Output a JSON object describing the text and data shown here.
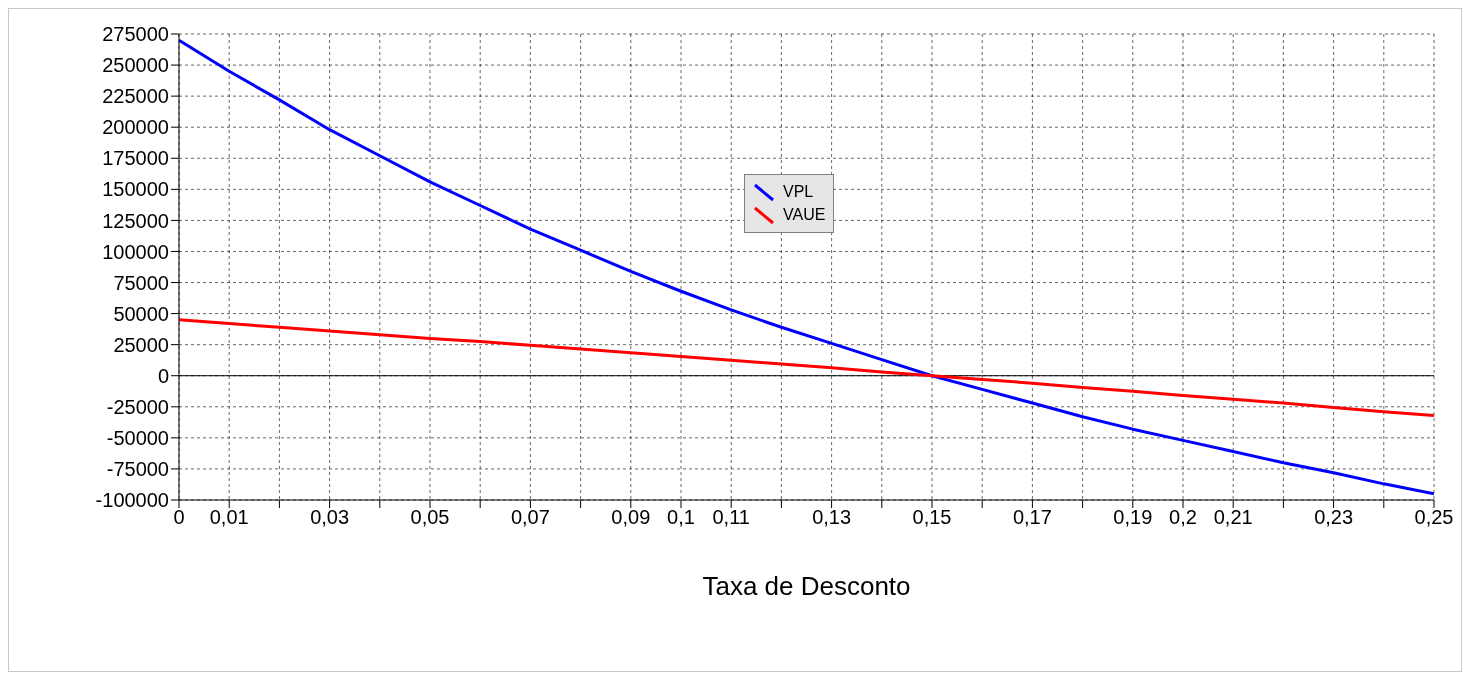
{
  "chart_data": {
    "type": "line",
    "xlabel": "Taxa de Desconto",
    "x": [
      0,
      0.01,
      0.02,
      0.03,
      0.04,
      0.05,
      0.06,
      0.07,
      0.08,
      0.09,
      0.1,
      0.11,
      0.12,
      0.13,
      0.14,
      0.15,
      0.16,
      0.17,
      0.18,
      0.19,
      0.2,
      0.21,
      0.22,
      0.23,
      0.24,
      0.25
    ],
    "series": [
      {
        "name": "VPL",
        "color": "#0000ff",
        "values": [
          270000,
          245000,
          222000,
          198000,
          177000,
          156000,
          137000,
          118000,
          101000,
          84000,
          68000,
          53000,
          39000,
          26000,
          13000,
          0,
          -11000,
          -22000,
          -33000,
          -43000,
          -52000,
          -61000,
          -70000,
          -78000,
          -87000,
          -95000
        ]
      },
      {
        "name": "VAUE",
        "color": "#ff0000",
        "values": [
          45000,
          42000,
          39000,
          36000,
          33000,
          30000,
          27500,
          24500,
          21500,
          18500,
          15500,
          12500,
          9500,
          6500,
          3000,
          0,
          -3000,
          -6000,
          -9500,
          -12500,
          -16000,
          -19000,
          -22000,
          -25500,
          -29000,
          -32000
        ]
      }
    ],
    "xlim": [
      0,
      0.25
    ],
    "xticks": [
      {
        "value": 0,
        "label": "0"
      },
      {
        "value": 0.01,
        "label": "0,01"
      },
      {
        "value": 0.02,
        "label": null
      },
      {
        "value": 0.03,
        "label": "0,03"
      },
      {
        "value": 0.04,
        "label": null
      },
      {
        "value": 0.05,
        "label": "0,05"
      },
      {
        "value": 0.06,
        "label": null
      },
      {
        "value": 0.07,
        "label": "0,07"
      },
      {
        "value": 0.08,
        "label": null
      },
      {
        "value": 0.09,
        "label": "0,09"
      },
      {
        "value": 0.1,
        "label": "0,1"
      },
      {
        "value": 0.11,
        "label": "0,11"
      },
      {
        "value": 0.12,
        "label": null
      },
      {
        "value": 0.13,
        "label": "0,13"
      },
      {
        "value": 0.14,
        "label": null
      },
      {
        "value": 0.15,
        "label": "0,15"
      },
      {
        "value": 0.16,
        "label": null
      },
      {
        "value": 0.17,
        "label": "0,17"
      },
      {
        "value": 0.18,
        "label": null
      },
      {
        "value": 0.19,
        "label": "0,19"
      },
      {
        "value": 0.2,
        "label": "0,2"
      },
      {
        "value": 0.21,
        "label": "0,21"
      },
      {
        "value": 0.22,
        "label": null
      },
      {
        "value": 0.23,
        "label": "0,23"
      },
      {
        "value": 0.24,
        "label": null
      },
      {
        "value": 0.25,
        "label": "0,25"
      }
    ],
    "ylim": [
      -100000,
      275000
    ],
    "yticks": [
      -100000,
      -75000,
      -50000,
      -25000,
      0,
      25000,
      50000,
      75000,
      100000,
      125000,
      150000,
      175000,
      200000,
      225000,
      250000,
      275000
    ],
    "ref_lines": [
      {
        "axis": "y",
        "value": 0,
        "color": "#000000"
      }
    ],
    "grid": true,
    "legend": "top",
    "marker": "none",
    "line_style": "solid"
  }
}
